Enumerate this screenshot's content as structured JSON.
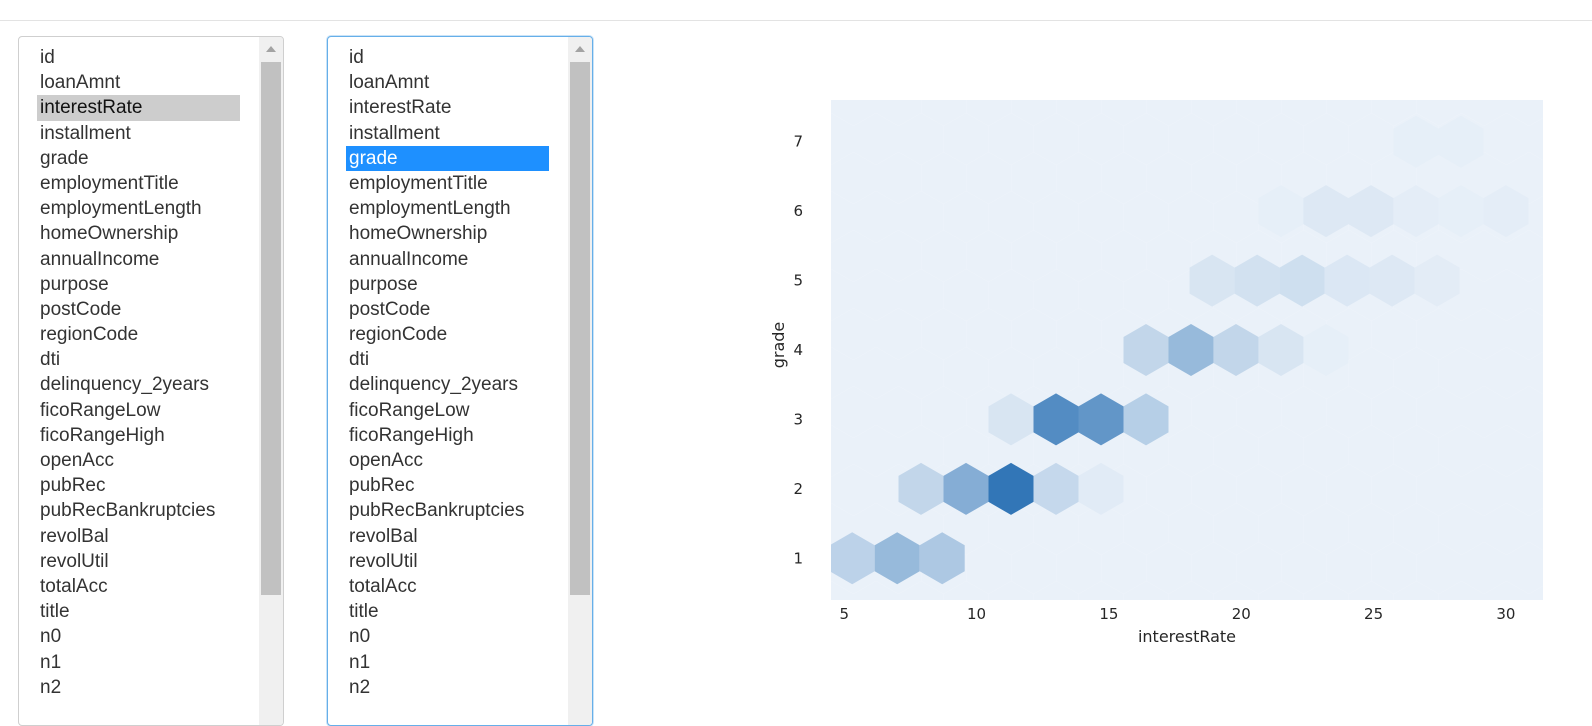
{
  "column_list_1": {
    "options": [
      "id",
      "loanAmnt",
      "interestRate",
      "installment",
      "grade",
      "employmentTitle",
      "employmentLength",
      "homeOwnership",
      "annualIncome",
      "purpose",
      "postCode",
      "regionCode",
      "dti",
      "delinquency_2years",
      "ficoRangeLow",
      "ficoRangeHigh",
      "openAcc",
      "pubRec",
      "pubRecBankruptcies",
      "revolBal",
      "revolUtil",
      "totalAcc",
      "title",
      "n0",
      "n1",
      "n2"
    ],
    "selected": "interestRate"
  },
  "column_list_2": {
    "options": [
      "id",
      "loanAmnt",
      "interestRate",
      "installment",
      "grade",
      "employmentTitle",
      "employmentLength",
      "homeOwnership",
      "annualIncome",
      "purpose",
      "postCode",
      "regionCode",
      "dti",
      "delinquency_2years",
      "ficoRangeLow",
      "ficoRangeHigh",
      "openAcc",
      "pubRec",
      "pubRecBankruptcies",
      "revolBal",
      "revolUtil",
      "totalAcc",
      "title",
      "n0",
      "n1",
      "n2"
    ],
    "selected": "grade"
  },
  "chart_data": {
    "type": "heatmap",
    "subtype": "hexbin",
    "xlabel": "interestRate",
    "ylabel": "grade",
    "xticks": [
      5,
      10,
      15,
      20,
      25,
      30
    ],
    "yticks": [
      1,
      2,
      3,
      4,
      5,
      6,
      7
    ],
    "xlim": [
      4.5,
      31.4
    ],
    "ylim": [
      0.4,
      7.6
    ],
    "colormap": "Blues",
    "background_color": "#eaf1f9",
    "bins": [
      {
        "x": 5.3,
        "y": 1,
        "density": 0.25
      },
      {
        "x": 7.0,
        "y": 1,
        "density": 0.45
      },
      {
        "x": 8.7,
        "y": 1,
        "density": 0.33
      },
      {
        "x": 7.9,
        "y": 2,
        "density": 0.22
      },
      {
        "x": 9.6,
        "y": 2,
        "density": 0.55
      },
      {
        "x": 11.3,
        "y": 2,
        "density": 1.0
      },
      {
        "x": 13.0,
        "y": 2,
        "density": 0.2
      },
      {
        "x": 14.7,
        "y": 2,
        "density": 0.05
      },
      {
        "x": 11.3,
        "y": 3,
        "density": 0.1
      },
      {
        "x": 13.0,
        "y": 3,
        "density": 0.82
      },
      {
        "x": 14.7,
        "y": 3,
        "density": 0.74
      },
      {
        "x": 16.4,
        "y": 3,
        "density": 0.28
      },
      {
        "x": 16.4,
        "y": 4,
        "density": 0.22
      },
      {
        "x": 18.1,
        "y": 4,
        "density": 0.45
      },
      {
        "x": 19.8,
        "y": 4,
        "density": 0.22
      },
      {
        "x": 21.5,
        "y": 4,
        "density": 0.1
      },
      {
        "x": 23.2,
        "y": 4,
        "density": 0.02
      },
      {
        "x": 18.9,
        "y": 5,
        "density": 0.1
      },
      {
        "x": 20.6,
        "y": 5,
        "density": 0.13
      },
      {
        "x": 22.3,
        "y": 5,
        "density": 0.15
      },
      {
        "x": 24.0,
        "y": 5,
        "density": 0.08
      },
      {
        "x": 25.7,
        "y": 5,
        "density": 0.07
      },
      {
        "x": 27.4,
        "y": 5,
        "density": 0.04
      },
      {
        "x": 21.5,
        "y": 6,
        "density": 0.02
      },
      {
        "x": 23.2,
        "y": 6,
        "density": 0.07
      },
      {
        "x": 24.9,
        "y": 6,
        "density": 0.07
      },
      {
        "x": 26.6,
        "y": 6,
        "density": 0.03
      },
      {
        "x": 28.3,
        "y": 6,
        "density": 0.02
      },
      {
        "x": 30.0,
        "y": 6,
        "density": 0.03
      },
      {
        "x": 26.6,
        "y": 7,
        "density": 0.02
      },
      {
        "x": 28.3,
        "y": 7,
        "density": 0.02
      }
    ]
  }
}
